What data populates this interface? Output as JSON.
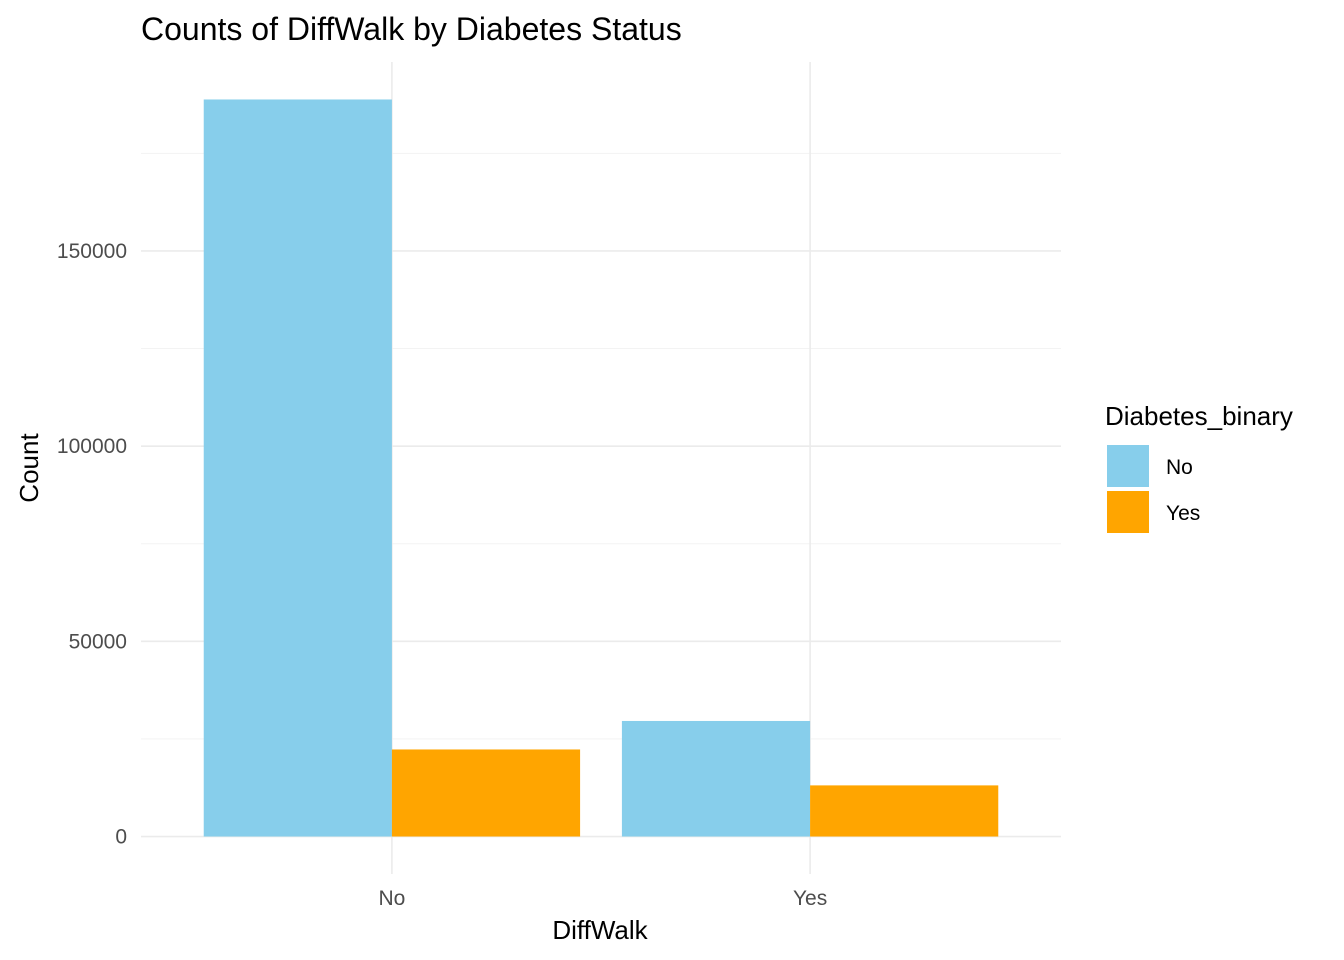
{
  "chart_data": {
    "type": "bar",
    "title": "Counts of DiffWalk by Diabetes Status",
    "xlabel": "DiffWalk",
    "ylabel": "Count",
    "categories": [
      "No",
      "Yes"
    ],
    "series": [
      {
        "name": "No",
        "color": "#87CEEB",
        "values": [
          188800,
          29600
        ]
      },
      {
        "name": "Yes",
        "color": "#FFA500",
        "values": [
          22300,
          13100
        ]
      }
    ],
    "yticks": [
      0,
      50000,
      100000,
      150000
    ],
    "ytick_labels": [
      "0",
      "50000",
      "100000",
      "150000"
    ],
    "ylim": [
      -9600,
      198400
    ],
    "grid": true,
    "legend": {
      "title": "Diabetes_binary",
      "position": "right"
    }
  }
}
